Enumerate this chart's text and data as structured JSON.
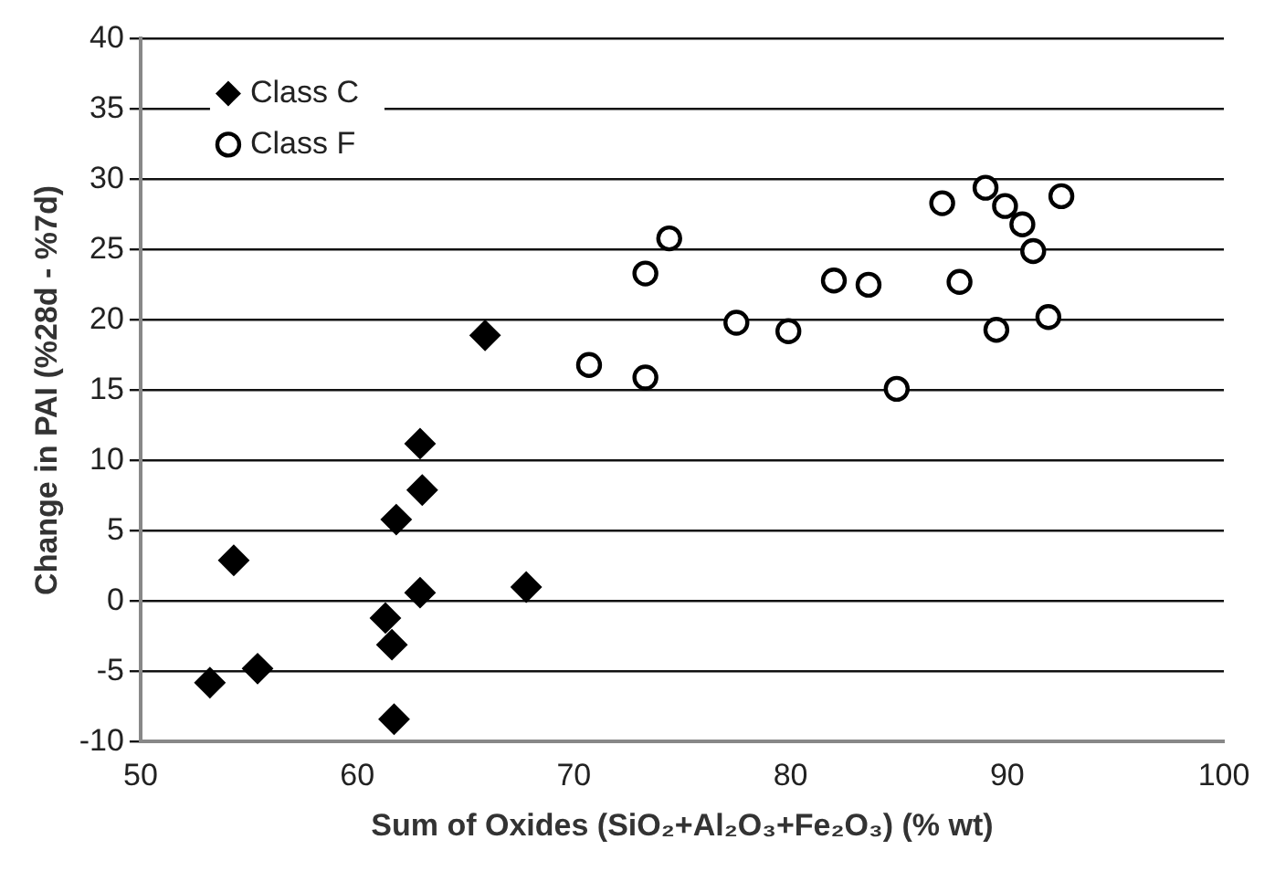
{
  "chart_data": {
    "type": "scatter",
    "xlabel": "Sum of Oxides (SiO₂+Al₂O₃+Fe₂O₃) (% wt)",
    "ylabel": "Change in PAI (%28d - %7d)",
    "xlim": [
      50,
      100
    ],
    "xticks": [
      50,
      60,
      70,
      80,
      90,
      100
    ],
    "ylim": [
      -10,
      40
    ],
    "yticks": [
      -10,
      -5,
      0,
      5,
      10,
      15,
      20,
      25,
      30,
      35,
      40
    ],
    "grid": "y",
    "legend": "top left",
    "series": [
      {
        "name": "Class C",
        "color": "#000000",
        "marker": "diamond",
        "x": [
          53.2,
          54.3,
          55.4,
          61.3,
          61.6,
          61.7,
          61.8,
          62.9,
          63.0,
          62.9,
          65.9,
          67.8
        ],
        "values": [
          -5.8,
          2.9,
          -4.8,
          -1.2,
          -3.1,
          -8.4,
          5.8,
          11.2,
          7.9,
          0.6,
          18.9,
          1.0
        ]
      },
      {
        "name": "Class F",
        "color": "#000000",
        "marker": "circle",
        "x": [
          70.7,
          73.3,
          73.3,
          74.4,
          77.5,
          79.9,
          82.0,
          83.6,
          84.9,
          87.0,
          87.8,
          89.0,
          89.5,
          89.9,
          90.7,
          91.2,
          91.9,
          92.5
        ],
        "values": [
          16.8,
          23.3,
          15.9,
          25.8,
          19.8,
          19.2,
          22.8,
          22.5,
          15.1,
          28.3,
          22.7,
          29.4,
          19.3,
          28.1,
          26.8,
          24.9,
          20.2,
          28.8
        ]
      }
    ]
  }
}
